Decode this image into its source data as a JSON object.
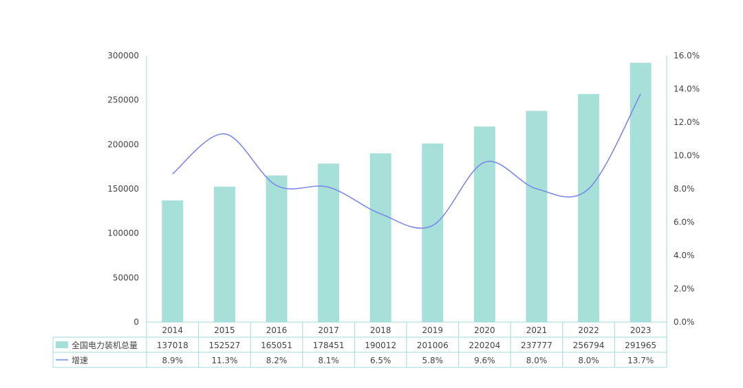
{
  "chart_data": {
    "type": "bar",
    "categories": [
      "2014",
      "2015",
      "2016",
      "2017",
      "2018",
      "2019",
      "2020",
      "2021",
      "2022",
      "2023"
    ],
    "series": [
      {
        "name": "全国电力装机总量",
        "type": "bar",
        "axis": "left",
        "color": "#a6e0d8",
        "values": [
          137018,
          152527,
          165051,
          178451,
          190012,
          201006,
          220204,
          237777,
          256794,
          291965
        ],
        "labels": [
          "137018",
          "152527",
          "165051",
          "178451",
          "190012",
          "201006",
          "220204",
          "237777",
          "256794",
          "291965"
        ]
      },
      {
        "name": "增速",
        "type": "line",
        "axis": "right",
        "color": "#7b88e8",
        "values": [
          8.9,
          11.3,
          8.2,
          8.1,
          6.5,
          5.8,
          9.6,
          8.0,
          8.0,
          13.7
        ],
        "labels": [
          "8.9%",
          "11.3%",
          "8.2%",
          "8.1%",
          "6.5%",
          "5.8%",
          "9.6%",
          "8.0%",
          "8.0%",
          "13.7%"
        ]
      }
    ],
    "y_left": {
      "lim": [
        0,
        300000
      ],
      "ticks": [
        "0",
        "50000",
        "100000",
        "150000",
        "200000",
        "250000",
        "300000"
      ]
    },
    "y_right": {
      "lim": [
        0,
        16
      ],
      "ticks": [
        "0.0%",
        "2.0%",
        "4.0%",
        "6.0%",
        "8.0%",
        "10.0%",
        "12.0%",
        "14.0%",
        "16.0%"
      ]
    },
    "grid": false,
    "legend": "data-table"
  }
}
